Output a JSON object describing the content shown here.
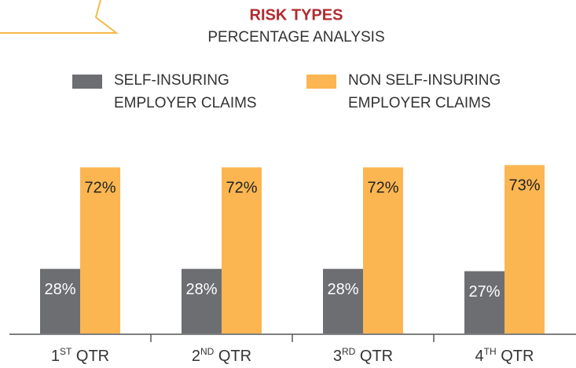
{
  "chart_data": {
    "type": "bar",
    "title": "RISK TYPES",
    "subtitle": "PERCENTAGE ANALYSIS",
    "categories": [
      "1ST QTR",
      "2ND QTR",
      "3RD QTR",
      "4TH QTR"
    ],
    "series": [
      {
        "name": "SELF-INSURING EMPLOYER CLAIMS",
        "color": "#6d6e71",
        "values": [
          28,
          28,
          28,
          27
        ],
        "value_labels": [
          "28%",
          "28%",
          "28%",
          "27%"
        ]
      },
      {
        "name": "NON SELF-INSURING EMPLOYER CLAIMS",
        "color": "#fbb651",
        "values": [
          72,
          72,
          72,
          73
        ],
        "value_labels": [
          "72%",
          "72%",
          "72%",
          "73%"
        ]
      }
    ]
  }
}
